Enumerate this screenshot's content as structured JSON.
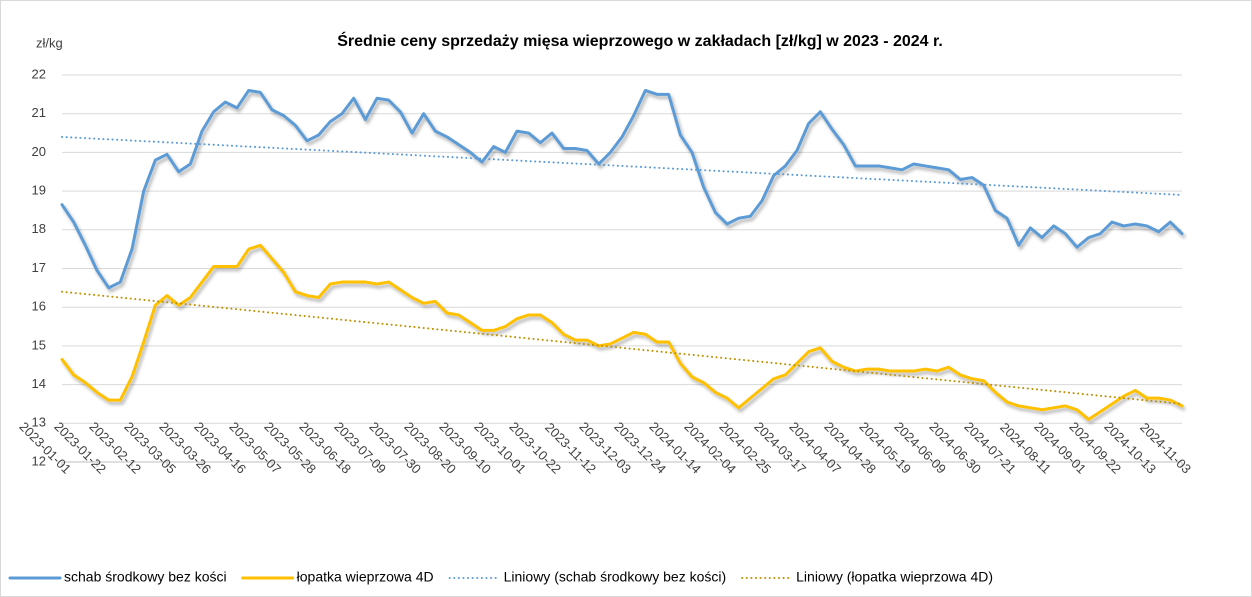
{
  "chart_data": {
    "type": "line",
    "title": "Średnie ceny sprzedaży mięsa wieprzowego w zakładach [zł/kg] w 2023 - 2024 r.",
    "y_label": "zł/kg",
    "x": [
      "2023-01-01",
      "2023-01-08",
      "2023-01-15",
      "2023-01-22",
      "2023-01-29",
      "2023-02-05",
      "2023-02-12",
      "2023-02-19",
      "2023-02-26",
      "2023-03-05",
      "2023-03-12",
      "2023-03-19",
      "2023-03-26",
      "2023-04-02",
      "2023-04-09",
      "2023-04-16",
      "2023-04-23",
      "2023-04-30",
      "2023-05-07",
      "2023-05-14",
      "2023-05-21",
      "2023-05-28",
      "2023-06-04",
      "2023-06-11",
      "2023-06-18",
      "2023-06-25",
      "2023-07-02",
      "2023-07-09",
      "2023-07-16",
      "2023-07-23",
      "2023-07-30",
      "2023-08-06",
      "2023-08-13",
      "2023-08-20",
      "2023-08-27",
      "2023-09-03",
      "2023-09-10",
      "2023-09-17",
      "2023-09-24",
      "2023-10-01",
      "2023-10-08",
      "2023-10-15",
      "2023-10-22",
      "2023-10-29",
      "2023-11-05",
      "2023-11-12",
      "2023-11-19",
      "2023-11-26",
      "2023-12-03",
      "2023-12-10",
      "2023-12-17",
      "2023-12-24",
      "2023-12-31",
      "2024-01-07",
      "2024-01-14",
      "2024-01-21",
      "2024-01-28",
      "2024-02-04",
      "2024-02-11",
      "2024-02-18",
      "2024-02-25",
      "2024-03-03",
      "2024-03-10",
      "2024-03-17",
      "2024-03-24",
      "2024-03-31",
      "2024-04-07",
      "2024-04-14",
      "2024-04-21",
      "2024-04-28",
      "2024-05-05",
      "2024-05-12",
      "2024-05-19",
      "2024-05-26",
      "2024-06-02",
      "2024-06-09",
      "2024-06-16",
      "2024-06-23",
      "2024-06-30",
      "2024-07-07",
      "2024-07-14",
      "2024-07-21",
      "2024-07-28",
      "2024-08-04",
      "2024-08-11",
      "2024-08-18",
      "2024-08-25",
      "2024-09-01",
      "2024-09-08",
      "2024-09-15",
      "2024-09-22",
      "2024-09-29",
      "2024-10-06",
      "2024-10-13",
      "2024-10-20",
      "2024-10-27",
      "2024-11-03"
    ],
    "xlim": [
      "2023-01-01",
      "2024-11-03"
    ],
    "xticks": [
      "2023-01-01",
      "2023-01-22",
      "2023-02-12",
      "2023-03-05",
      "2023-03-26",
      "2023-04-16",
      "2023-05-07",
      "2023-05-28",
      "2023-06-18",
      "2023-07-09",
      "2023-07-30",
      "2023-08-20",
      "2023-09-10",
      "2023-10-01",
      "2023-10-22",
      "2023-11-12",
      "2023-12-03",
      "2023-12-24",
      "2024-01-14",
      "2024-02-04",
      "2024-02-25",
      "2024-03-17",
      "2024-04-07",
      "2024-04-28",
      "2024-05-19",
      "2024-06-09",
      "2024-06-30",
      "2024-07-21",
      "2024-08-11",
      "2024-09-01",
      "2024-09-22",
      "2024-10-13",
      "2024-11-03"
    ],
    "ylim": [
      12,
      22
    ],
    "yticks": [
      12,
      13,
      14,
      15,
      16,
      17,
      18,
      19,
      20,
      21,
      22
    ],
    "grid": true,
    "legend": "bottom",
    "series": [
      {
        "name": "schab środkowy bez kości",
        "color": "#5b9bd5",
        "style": "solid",
        "values": [
          18.65,
          18.2,
          17.6,
          16.95,
          16.5,
          16.65,
          17.5,
          19.0,
          19.8,
          19.95,
          19.5,
          19.7,
          20.55,
          21.05,
          21.3,
          21.15,
          21.6,
          21.55,
          21.1,
          20.95,
          20.7,
          20.3,
          20.45,
          20.8,
          21.0,
          21.4,
          20.85,
          21.4,
          21.35,
          21.05,
          20.5,
          21.0,
          20.55,
          20.4,
          20.2,
          20.0,
          19.75,
          20.15,
          20.0,
          20.55,
          20.5,
          20.25,
          20.5,
          20.1,
          20.1,
          20.05,
          19.7,
          20.0,
          20.4,
          20.95,
          21.6,
          21.5,
          21.5,
          20.45,
          20.0,
          19.1,
          18.45,
          18.15,
          18.3,
          18.35,
          18.75,
          19.4,
          19.65,
          20.05,
          20.75,
          21.05,
          20.6,
          20.2,
          19.65,
          19.65,
          19.65,
          19.6,
          19.55,
          19.7,
          19.65,
          19.6,
          19.55,
          19.3,
          19.35,
          19.15,
          18.5,
          18.3,
          17.6,
          18.05,
          17.8,
          18.1,
          17.9,
          17.55,
          17.8,
          17.9,
          18.2,
          18.1,
          18.15,
          18.1,
          17.95,
          18.2,
          17.9
        ]
      },
      {
        "name": "łopatka wieprzowa 4D",
        "color": "#ffc000",
        "style": "solid",
        "values": [
          14.65,
          14.25,
          14.05,
          13.8,
          13.6,
          13.6,
          14.2,
          15.1,
          16.05,
          16.3,
          16.05,
          16.25,
          16.65,
          17.05,
          17.05,
          17.05,
          17.5,
          17.6,
          17.25,
          16.9,
          16.4,
          16.3,
          16.25,
          16.6,
          16.65,
          16.65,
          16.65,
          16.6,
          16.65,
          16.45,
          16.25,
          16.1,
          16.15,
          15.85,
          15.8,
          15.6,
          15.4,
          15.4,
          15.5,
          15.7,
          15.8,
          15.8,
          15.6,
          15.3,
          15.15,
          15.15,
          15.0,
          15.05,
          15.2,
          15.35,
          15.3,
          15.1,
          15.1,
          14.55,
          14.2,
          14.05,
          13.8,
          13.65,
          13.4,
          13.65,
          13.9,
          14.15,
          14.25,
          14.55,
          14.85,
          14.95,
          14.6,
          14.45,
          14.35,
          14.4,
          14.4,
          14.35,
          14.35,
          14.35,
          14.4,
          14.35,
          14.45,
          14.25,
          14.15,
          14.1,
          13.8,
          13.55,
          13.45,
          13.4,
          13.35,
          13.4,
          13.45,
          13.35,
          13.1,
          13.3,
          13.5,
          13.7,
          13.85,
          13.65,
          13.65,
          13.6,
          13.45
        ]
      },
      {
        "name": "Liniowy (schab środkowy bez kości)",
        "color": "#5b9bd5",
        "style": "dotted",
        "x": [
          "2023-01-01",
          "2024-11-03"
        ],
        "values": [
          20.4,
          18.9
        ]
      },
      {
        "name": "Liniowy (łopatka wieprzowa 4D)",
        "color": "#bf9000",
        "style": "dotted",
        "x": [
          "2023-01-01",
          "2024-11-03"
        ],
        "values": [
          16.4,
          13.5
        ]
      }
    ]
  }
}
